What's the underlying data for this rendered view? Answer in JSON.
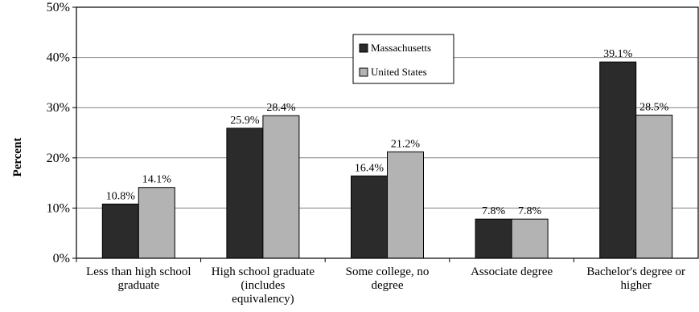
{
  "chart_data": {
    "type": "bar",
    "ylabel": "Percent",
    "ylim": [
      0,
      50
    ],
    "yticks": [
      "0%",
      "10%",
      "20%",
      "30%",
      "40%",
      "50%"
    ],
    "grid": true,
    "legend_position": "top-center",
    "categories": [
      [
        "Less than high school",
        "graduate"
      ],
      [
        "High school graduate",
        "(includes",
        "equivalency)"
      ],
      [
        "Some college, no",
        "degree"
      ],
      [
        "Associate degree"
      ],
      [
        "Bachelor's degree or",
        "higher"
      ]
    ],
    "series": [
      {
        "name": "Massachusetts",
        "color": "#2b2b2b",
        "values": [
          10.8,
          25.9,
          16.4,
          7.8,
          39.1
        ],
        "labels": [
          "10.8%",
          "25.9%",
          "16.4%",
          "7.8%",
          "39.1%"
        ]
      },
      {
        "name": "United States",
        "color": "#b3b3b3",
        "values": [
          14.1,
          28.4,
          21.2,
          7.8,
          28.5
        ],
        "labels": [
          "14.1%",
          "28.4%",
          "21.2%",
          "7.8%",
          "28.5%"
        ]
      }
    ]
  }
}
